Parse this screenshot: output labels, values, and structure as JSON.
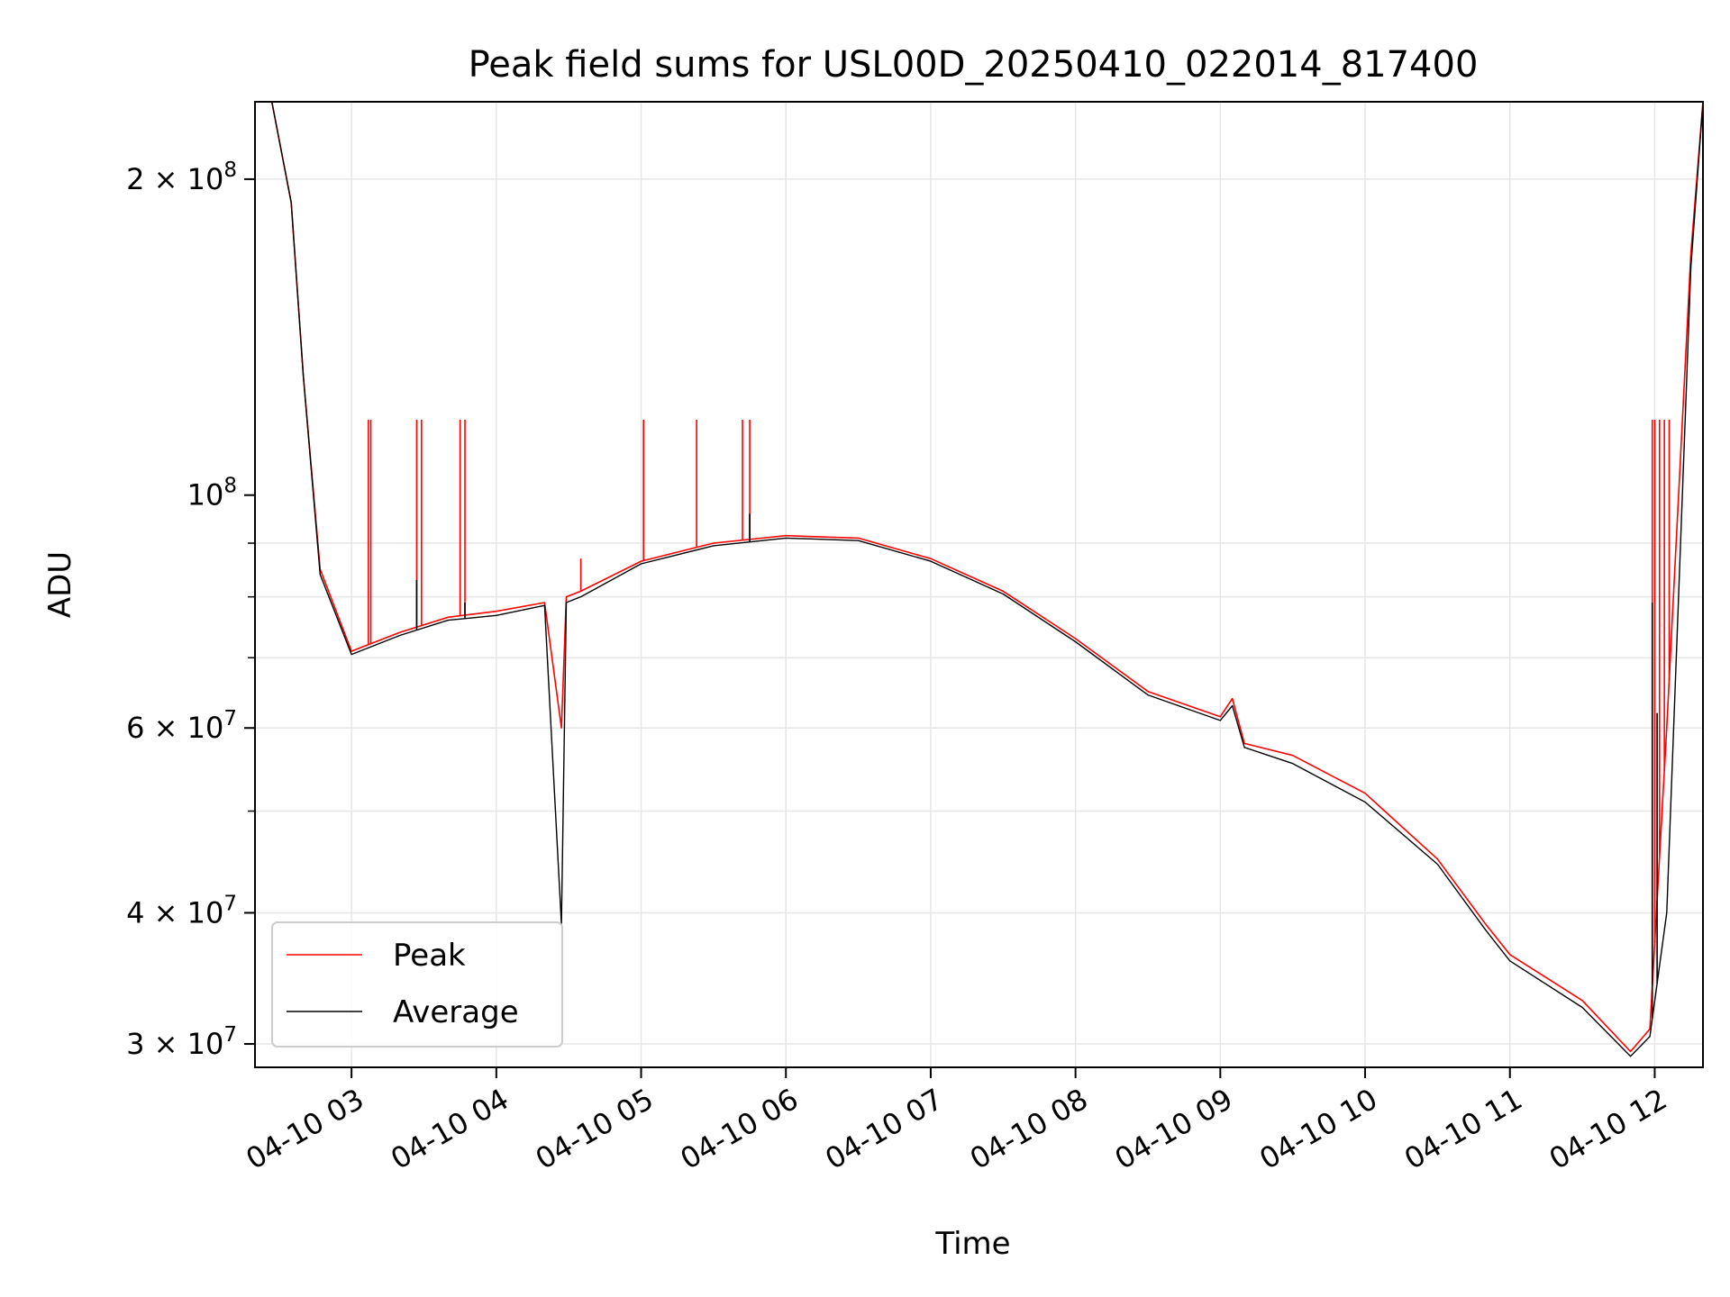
{
  "chart_data": {
    "type": "line",
    "title": "Peak field sums for USL00D_20250410_022014_817400",
    "xlabel": "Time",
    "ylabel": "ADU",
    "yscale": "log",
    "xlim": [
      "04-10 02:20",
      "04-10 12:20"
    ],
    "ylim": [
      28500000,
      237000000
    ],
    "grid": true,
    "legend": "lower-left",
    "x_ticks": [
      "04-10 03",
      "04-10 04",
      "04-10 05",
      "04-10 06",
      "04-10 07",
      "04-10 08",
      "04-10 09",
      "04-10 10",
      "04-10 11",
      "04-10 12"
    ],
    "y_ticks": [
      {
        "value": 30000000,
        "label": "3 × 10",
        "exp": "7"
      },
      {
        "value": 40000000,
        "label": "4 × 10",
        "exp": "7"
      },
      {
        "value": 60000000,
        "label": "6 × 10",
        "exp": "7"
      },
      {
        "value": 100000000,
        "label": "10",
        "exp": "8"
      },
      {
        "value": 200000000,
        "label": "2 × 10",
        "exp": "8"
      }
    ],
    "series": [
      {
        "name": "Peak",
        "color": "#ff0000",
        "x": [
          "04-10 02:27",
          "04-10 02:35",
          "04-10 02:40",
          "04-10 02:47",
          "04-10 03:00",
          "04-10 03:20",
          "04-10 03:40",
          "04-10 04:00",
          "04-10 04:20",
          "04-10 04:27",
          "04-10 04:29",
          "04-10 04:35",
          "04-10 05:00",
          "04-10 05:30",
          "04-10 06:00",
          "04-10 06:30",
          "04-10 07:00",
          "04-10 07:30",
          "04-10 08:00",
          "04-10 08:30",
          "04-10 09:00",
          "04-10 09:05",
          "04-10 09:10",
          "04-10 09:30",
          "04-10 10:00",
          "04-10 10:30",
          "04-10 10:50",
          "04-10 11:00",
          "04-10 11:30",
          "04-10 11:50",
          "04-10 11:58",
          "04-10 12:05",
          "04-10 12:15",
          "04-10 12:20"
        ],
        "y": [
          237000000,
          190000000,
          130000000,
          85000000,
          71000000,
          74000000,
          76500000,
          77500000,
          79000000,
          60000000,
          80000000,
          81000000,
          86500000,
          90000000,
          91500000,
          91000000,
          87000000,
          81000000,
          73000000,
          65000000,
          61500000,
          64000000,
          58000000,
          56500000,
          52000000,
          45000000,
          39000000,
          36500000,
          33000000,
          29500000,
          31000000,
          60000000,
          170000000,
          237000000
        ],
        "spikes": [
          {
            "x": "04-10 03:07",
            "y": 118000000
          },
          {
            "x": "04-10 03:08",
            "y": 118000000
          },
          {
            "x": "04-10 03:27",
            "y": 118000000
          },
          {
            "x": "04-10 03:29",
            "y": 118000000
          },
          {
            "x": "04-10 03:45",
            "y": 118000000
          },
          {
            "x": "04-10 03:47",
            "y": 118000000
          },
          {
            "x": "04-10 04:35",
            "y": 87000000
          },
          {
            "x": "04-10 05:01",
            "y": 118000000
          },
          {
            "x": "04-10 05:23",
            "y": 118000000
          },
          {
            "x": "04-10 05:42",
            "y": 118000000
          },
          {
            "x": "04-10 05:45",
            "y": 118000000
          },
          {
            "x": "04-10 11:59",
            "y": 118000000
          },
          {
            "x": "04-10 12:00",
            "y": 118000000
          },
          {
            "x": "04-10 12:02",
            "y": 118000000
          },
          {
            "x": "04-10 12:04",
            "y": 118000000
          },
          {
            "x": "04-10 12:06",
            "y": 118000000
          }
        ]
      },
      {
        "name": "Average",
        "color": "#000000",
        "x": [
          "04-10 02:27",
          "04-10 02:35",
          "04-10 02:40",
          "04-10 02:47",
          "04-10 03:00",
          "04-10 03:20",
          "04-10 03:40",
          "04-10 04:00",
          "04-10 04:20",
          "04-10 04:27",
          "04-10 04:29",
          "04-10 04:35",
          "04-10 05:00",
          "04-10 05:30",
          "04-10 06:00",
          "04-10 06:30",
          "04-10 07:00",
          "04-10 07:30",
          "04-10 08:00",
          "04-10 08:30",
          "04-10 09:00",
          "04-10 09:05",
          "04-10 09:10",
          "04-10 09:30",
          "04-10 10:00",
          "04-10 10:30",
          "04-10 10:50",
          "04-10 11:00",
          "04-10 11:30",
          "04-10 11:50",
          "04-10 11:58",
          "04-10 12:05",
          "04-10 12:15",
          "04-10 12:20"
        ],
        "y": [
          237000000,
          190000000,
          130000000,
          84000000,
          70500000,
          73500000,
          76000000,
          76800000,
          78500000,
          39000000,
          79000000,
          80000000,
          86000000,
          89500000,
          91000000,
          90500000,
          86500000,
          80500000,
          72500000,
          64500000,
          61000000,
          63000000,
          57500000,
          55500000,
          51000000,
          44500000,
          38500000,
          36000000,
          32500000,
          29200000,
          30500000,
          40000000,
          165000000,
          237000000
        ],
        "spikes": [
          {
            "x": "04-10 03:27",
            "y": 83000000
          },
          {
            "x": "04-10 03:47",
            "y": 79000000
          },
          {
            "x": "04-10 05:45",
            "y": 96000000
          },
          {
            "x": "04-10 11:59",
            "y": 79000000
          },
          {
            "x": "04-10 12:01",
            "y": 62000000
          }
        ]
      }
    ]
  }
}
